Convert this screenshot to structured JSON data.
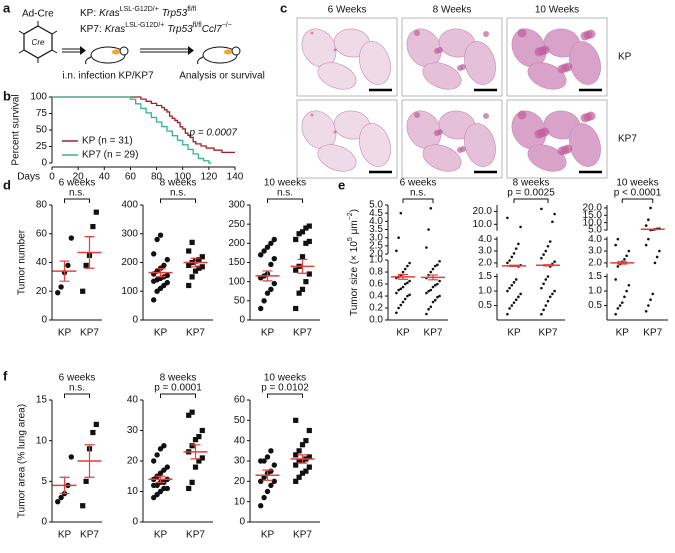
{
  "panel_labels": [
    "a",
    "b",
    "c",
    "d",
    "e",
    "f"
  ],
  "diagram": {
    "virus": "Ad-Cre",
    "virus_label": "Cre",
    "kp": [
      "KP:",
      "Kras",
      "LSL-G12D/+",
      "Trp53",
      "fl/fl"
    ],
    "kp7": [
      "KP7:",
      "Kras",
      "LSL-G12D/+",
      "Trp53",
      "fl/fl",
      "Ccl7",
      "−/−"
    ],
    "step1": "i.n. infection KP/KP7",
    "step2": "Analysis or survival"
  },
  "images": {
    "columns": [
      "6 Weeks",
      "8 Weeks",
      "10 Weeks"
    ],
    "rows": [
      "KP",
      "KP7"
    ]
  },
  "chart_data": [
    {
      "type": "step",
      "xlabel": "Days",
      "ylabel": "Percent survival",
      "xlim": [
        0,
        140
      ],
      "xticks": [
        0,
        20,
        40,
        60,
        80,
        100,
        120,
        140
      ],
      "ylim": [
        0,
        100
      ],
      "yticks": [
        0,
        25,
        50,
        75,
        100
      ],
      "legend": "lower left",
      "annotation": "p = 0.0007",
      "series": [
        {
          "name": "KP (n = 31)",
          "color": "#a3202b",
          "x": [
            0,
            62,
            68,
            72,
            76,
            80,
            84,
            86,
            88,
            90,
            92,
            94,
            96,
            98,
            100,
            102,
            104,
            106,
            108,
            110,
            114,
            118,
            124,
            130,
            140
          ],
          "values": [
            100,
            100,
            96.8,
            93.5,
            90.3,
            87.1,
            83.9,
            80.6,
            77.4,
            71.0,
            67.7,
            64.5,
            61.3,
            54.8,
            51.6,
            45.2,
            41.9,
            38.7,
            32.3,
            29.0,
            25.8,
            22.6,
            19.4,
            16.1,
            16.1
          ]
        },
        {
          "name": "KP7 (n = 29)",
          "color": "#35b58a",
          "x": [
            0,
            55,
            60,
            64,
            68,
            72,
            76,
            80,
            84,
            88,
            92,
            96,
            100,
            104,
            108,
            112,
            116,
            120,
            122
          ],
          "values": [
            100,
            100,
            96.6,
            89.7,
            82.8,
            75.9,
            69.0,
            62.1,
            55.2,
            48.3,
            41.4,
            34.5,
            27.6,
            20.7,
            13.8,
            6.9,
            3.4,
            0,
            0
          ]
        }
      ]
    },
    {
      "type": "dot",
      "title": "6 weeks",
      "ylabel": "Tumor number",
      "categories": [
        "KP",
        "KP7"
      ],
      "markers": [
        "circle",
        "square"
      ],
      "mean_color": "#e0403c",
      "ylim": [
        0,
        80
      ],
      "yticks": [
        0,
        20,
        40,
        60,
        80
      ],
      "values": [
        [
          19,
          23,
          33,
          38,
          57
        ],
        [
          20,
          38,
          45,
          65,
          75
        ]
      ],
      "means": [
        34,
        47
      ],
      "errors": [
        7,
        11
      ],
      "annotation": "n.s."
    },
    {
      "type": "dot",
      "title": "8 weeks",
      "categories": [
        "KP",
        "KP7"
      ],
      "markers": [
        "circle",
        "square"
      ],
      "mean_color": "#e0403c",
      "ylim": [
        0,
        400
      ],
      "yticks": [
        0,
        100,
        200,
        300,
        400
      ],
      "values": [
        [
          70,
          100,
          110,
          120,
          130,
          135,
          140,
          145,
          150,
          155,
          160,
          170,
          180,
          190,
          210,
          230,
          280,
          295
        ],
        [
          120,
          150,
          170,
          180,
          185,
          190,
          200,
          205,
          210,
          220,
          240,
          270
        ]
      ],
      "means": [
        165,
        200
      ],
      "errors": [
        14,
        15
      ],
      "annotation": "n.s."
    },
    {
      "type": "dot",
      "title": "10 weeks",
      "categories": [
        "KP",
        "KP7"
      ],
      "markers": [
        "circle",
        "square"
      ],
      "mean_color": "#e0403c",
      "ylim": [
        0,
        300
      ],
      "yticks": [
        0,
        50,
        100,
        150,
        200,
        250,
        300
      ],
      "values": [
        [
          30,
          50,
          70,
          80,
          95,
          110,
          115,
          120,
          145,
          160,
          170,
          180,
          190,
          200,
          210
        ],
        [
          30,
          70,
          80,
          100,
          120,
          130,
          140,
          165,
          200,
          205,
          210,
          225,
          230,
          240,
          245
        ]
      ],
      "means": [
        115,
        140
      ],
      "errors": [
        13,
        18
      ],
      "annotation": "n.s."
    },
    {
      "type": "dot",
      "title": "6 weeks",
      "ylabel": [
        "Tumor size (× 10",
        "5",
        " μm",
        "−2",
        ")"
      ],
      "categories": [
        "KP",
        "KP7"
      ],
      "markers": [
        "dot",
        "dot"
      ],
      "mean_color": "#e0403c",
      "segments": [
        {
          "ylim": [
            0,
            1
          ],
          "yticks": [
            {
              "value": 0,
              "label": "0.0"
            },
            {
              "value": 0.2,
              "label": "0.2"
            },
            {
              "value": 0.4,
              "label": "0.4"
            },
            {
              "value": 0.6,
              "label": "0.6"
            },
            {
              "value": 0.8,
              "label": "0.8"
            },
            {
              "value": 1,
              "label": "1.0"
            }
          ]
        },
        {
          "ylim": [
            2,
            5
          ],
          "yticks": [
            {
              "value": 2,
              "label": "2.0"
            },
            {
              "value": 2.5,
              "label": "2.5"
            },
            {
              "value": 3,
              "label": "3.0"
            },
            {
              "value": 3.5,
              "label": "3.5"
            },
            {
              "value": 4,
              "label": "4.0"
            },
            {
              "value": 4.5,
              "label": "4.5"
            },
            {
              "value": 5,
              "label": "5.0"
            }
          ]
        }
      ],
      "values": [
        [
          0.12,
          0.2,
          0.25,
          0.3,
          0.35,
          0.4,
          0.42,
          0.45,
          0.5,
          0.52,
          0.55,
          0.6,
          0.62,
          0.65,
          0.7,
          0.72,
          0.75,
          0.8,
          0.85,
          0.9,
          0.95,
          2.2,
          3.0,
          4.5
        ],
        [
          0.1,
          0.18,
          0.22,
          0.3,
          0.33,
          0.38,
          0.4,
          0.45,
          0.48,
          0.5,
          0.55,
          0.58,
          0.6,
          0.65,
          0.7,
          0.75,
          0.8,
          0.85,
          0.9,
          0.92,
          0.98,
          2.4,
          3.5,
          4.8
        ]
      ],
      "means": [
        0.72,
        0.71
      ],
      "errors": [
        0.04,
        0.04
      ],
      "annotation": "n.s."
    },
    {
      "type": "dot",
      "title": "8 weeks",
      "categories": [
        "KP",
        "KP7"
      ],
      "markers": [
        "dot",
        "dot"
      ],
      "mean_color": "#e0403c",
      "segments": [
        {
          "ylim": [
            0,
            1.6
          ],
          "yticks": [
            {
              "value": 0.5,
              "label": "0.5"
            },
            {
              "value": 1,
              "label": "1.0"
            },
            {
              "value": 1.5,
              "label": "1.5"
            }
          ]
        },
        {
          "ylim": [
            1.6,
            4.2
          ],
          "yticks": [
            {
              "value": 2,
              "label": "2.0"
            },
            {
              "value": 3,
              "label": "3.0"
            },
            {
              "value": 4,
              "label": "4.0"
            }
          ]
        },
        {
          "ylim": [
            5,
            25
          ],
          "yticks": [
            {
              "value": 10,
              "label": "10.0"
            },
            {
              "value": 20,
              "label": "20.0"
            }
          ]
        }
      ],
      "values": [
        [
          0.2,
          0.4,
          0.5,
          0.6,
          0.7,
          0.8,
          0.9,
          1.0,
          1.1,
          1.2,
          1.3,
          1.4,
          1.7,
          1.8,
          2.0,
          2.2,
          2.5,
          2.8,
          3.2,
          3.6,
          8,
          15
        ],
        [
          0.2,
          0.35,
          0.5,
          0.65,
          0.8,
          0.9,
          1.0,
          1.1,
          1.25,
          1.4,
          1.5,
          1.7,
          1.9,
          2.1,
          2.4,
          2.7,
          3.0,
          3.4,
          3.8,
          12,
          18,
          22
        ]
      ],
      "means": [
        1.75,
        1.8
      ],
      "errors": [
        0.05,
        0.05
      ],
      "annotation": "p = 0.0025"
    },
    {
      "type": "dot",
      "title": "10 weeks",
      "categories": [
        "KP",
        "KP7"
      ],
      "markers": [
        "dot",
        "dot"
      ],
      "mean_color": "#e0403c",
      "segments": [
        {
          "ylim": [
            0,
            1.6
          ],
          "yticks": [
            {
              "value": 0.5,
              "label": "0.5"
            },
            {
              "value": 1,
              "label": "1.0"
            },
            {
              "value": 1.5,
              "label": "1.5"
            }
          ]
        },
        {
          "ylim": [
            1.6,
            4.2
          ],
          "yticks": [
            {
              "value": 2,
              "label": "2.0"
            },
            {
              "value": 3,
              "label": "3.0"
            },
            {
              "value": 4,
              "label": "4.0"
            }
          ]
        },
        {
          "ylim": [
            4.5,
            22
          ],
          "yticks": [
            {
              "value": 5,
              "label": "5.0"
            },
            {
              "value": 10,
              "label": "10.0"
            },
            {
              "value": 15,
              "label": "15.0"
            },
            {
              "value": 20,
              "label": "20.0"
            }
          ]
        }
      ],
      "values": [
        [
          0.2,
          0.4,
          0.5,
          0.6,
          0.8,
          1.0,
          1.2,
          1.4,
          1.7,
          1.9,
          2.1,
          2.3,
          2.6,
          3.0,
          3.5,
          4.0
        ],
        [
          0.3,
          0.5,
          0.7,
          0.9,
          2.0,
          2.5,
          3.0,
          3.5,
          4.0,
          5.0,
          5.2,
          5.5,
          5.8,
          6.0,
          8,
          12,
          20
        ]
      ],
      "means": [
        2.0,
        5.5
      ],
      "errors": [
        0.1,
        0.15
      ],
      "annotation": "p < 0.0001"
    },
    {
      "type": "dot",
      "title": "6 weeks",
      "ylabel": "Tumor area (% lung area)",
      "categories": [
        "KP",
        "KP7"
      ],
      "markers": [
        "circle",
        "square"
      ],
      "mean_color": "#e0403c",
      "ylim": [
        0,
        15
      ],
      "yticks": [
        0,
        5,
        10,
        15
      ],
      "values": [
        [
          2.5,
          3,
          3.5,
          4.5,
          8
        ],
        [
          2,
          5,
          9,
          11,
          12
        ]
      ],
      "means": [
        4.5,
        7.5
      ],
      "errors": [
        1,
        2
      ],
      "annotation": "n.s."
    },
    {
      "type": "dot",
      "title": "8 weeks",
      "categories": [
        "KP",
        "KP7"
      ],
      "markers": [
        "circle",
        "square"
      ],
      "mean_color": "#e0403c",
      "ylim": [
        0,
        40
      ],
      "yticks": [
        0,
        10,
        20,
        30,
        40
      ],
      "values": [
        [
          8,
          9,
          10,
          11,
          11,
          12,
          12,
          13,
          13,
          14,
          14,
          15,
          16,
          17,
          18,
          20,
          22,
          24,
          25
        ],
        [
          11,
          13,
          18,
          20,
          21,
          23,
          25,
          27,
          28,
          30,
          35,
          36
        ]
      ],
      "means": [
        14,
        23
      ],
      "errors": [
        1,
        2.3
      ],
      "annotation": "p = 0.0001"
    },
    {
      "type": "dot",
      "title": "10 weeks",
      "categories": [
        "KP",
        "KP7"
      ],
      "markers": [
        "circle",
        "square"
      ],
      "mean_color": "#e0403c",
      "ylim": [
        0,
        60
      ],
      "yticks": [
        0,
        10,
        20,
        30,
        40,
        50,
        60
      ],
      "values": [
        [
          8,
          12,
          15,
          18,
          20,
          20,
          22,
          24,
          25,
          28,
          30,
          30,
          32,
          35
        ],
        [
          20,
          22,
          24,
          25,
          27,
          28,
          30,
          30,
          31,
          32,
          33,
          35,
          38,
          40,
          45,
          50
        ]
      ],
      "means": [
        23,
        31
      ],
      "errors": [
        2.5,
        2
      ],
      "annotation": "p = 0.0102"
    }
  ]
}
